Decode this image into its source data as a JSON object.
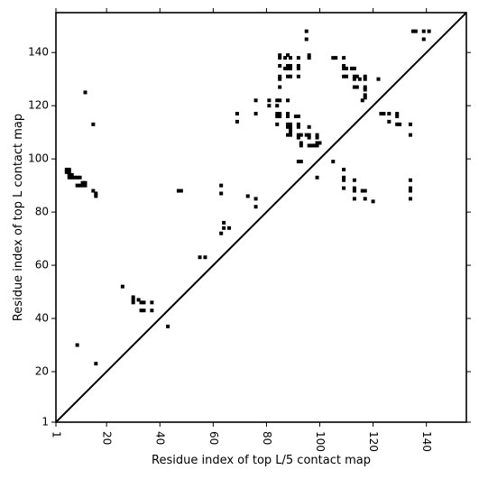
{
  "chart_data": {
    "type": "scatter",
    "xlabel": "Residue index of top L/5 contact map",
    "ylabel": "Residue index of top L contact map",
    "xlim": [
      1,
      155
    ],
    "ylim": [
      1,
      155
    ],
    "x_ticks": [
      1,
      20,
      40,
      60,
      80,
      100,
      120,
      140
    ],
    "y_ticks": [
      1,
      20,
      40,
      60,
      80,
      100,
      120,
      140
    ],
    "grid": false,
    "legend": "none",
    "marker": "square",
    "marker_color": "#000000",
    "reference_line": {
      "from": [
        1,
        1
      ],
      "to": [
        155,
        155
      ],
      "color": "#000000"
    },
    "points": [
      [
        5,
        96
      ],
      [
        5,
        95
      ],
      [
        6,
        96
      ],
      [
        6,
        95
      ],
      [
        6,
        94
      ],
      [
        6,
        93
      ],
      [
        7,
        94
      ],
      [
        7,
        93
      ],
      [
        8,
        93
      ],
      [
        9,
        93
      ],
      [
        10,
        93
      ],
      [
        9,
        90
      ],
      [
        10,
        90
      ],
      [
        11,
        90
      ],
      [
        11,
        91
      ],
      [
        12,
        91
      ],
      [
        12,
        90
      ],
      [
        12,
        125
      ],
      [
        15,
        113
      ],
      [
        15,
        88
      ],
      [
        16,
        87
      ],
      [
        16,
        86
      ],
      [
        16,
        23
      ],
      [
        9,
        30
      ],
      [
        26,
        52
      ],
      [
        30,
        48
      ],
      [
        30,
        47
      ],
      [
        30,
        46
      ],
      [
        32,
        47
      ],
      [
        33,
        46
      ],
      [
        34,
        46
      ],
      [
        33,
        43
      ],
      [
        34,
        43
      ],
      [
        37,
        46
      ],
      [
        37,
        43
      ],
      [
        43,
        37
      ],
      [
        47,
        88
      ],
      [
        48,
        88
      ],
      [
        55,
        63
      ],
      [
        57,
        63
      ],
      [
        63,
        90
      ],
      [
        63,
        87
      ],
      [
        63,
        72
      ],
      [
        64,
        76
      ],
      [
        64,
        74
      ],
      [
        66,
        74
      ],
      [
        69,
        117
      ],
      [
        69,
        114
      ],
      [
        73,
        86
      ],
      [
        76,
        85
      ],
      [
        76,
        82
      ],
      [
        76,
        122
      ],
      [
        76,
        117
      ],
      [
        81,
        122
      ],
      [
        81,
        120
      ],
      [
        84,
        122
      ],
      [
        84,
        120
      ],
      [
        84,
        117
      ],
      [
        84,
        116
      ],
      [
        84,
        113
      ],
      [
        85,
        139
      ],
      [
        85,
        138
      ],
      [
        85,
        135
      ],
      [
        85,
        131
      ],
      [
        85,
        130
      ],
      [
        85,
        127
      ],
      [
        85,
        122
      ],
      [
        85,
        117
      ],
      [
        85,
        116
      ],
      [
        87,
        138
      ],
      [
        87,
        134
      ],
      [
        88,
        139
      ],
      [
        88,
        135
      ],
      [
        88,
        134
      ],
      [
        88,
        131
      ],
      [
        88,
        122
      ],
      [
        88,
        117
      ],
      [
        88,
        116
      ],
      [
        88,
        113
      ],
      [
        88,
        112
      ],
      [
        88,
        109
      ],
      [
        89,
        138
      ],
      [
        89,
        135
      ],
      [
        89,
        134
      ],
      [
        89,
        131
      ],
      [
        89,
        113
      ],
      [
        89,
        112
      ],
      [
        89,
        111
      ],
      [
        89,
        110
      ],
      [
        89,
        109
      ],
      [
        91,
        116
      ],
      [
        92,
        138
      ],
      [
        92,
        135
      ],
      [
        92,
        134
      ],
      [
        92,
        131
      ],
      [
        92,
        116
      ],
      [
        92,
        113
      ],
      [
        92,
        112
      ],
      [
        92,
        109
      ],
      [
        92,
        108
      ],
      [
        92,
        99
      ],
      [
        93,
        109
      ],
      [
        93,
        106
      ],
      [
        93,
        105
      ],
      [
        93,
        99
      ],
      [
        95,
        148
      ],
      [
        95,
        145
      ],
      [
        95,
        109
      ],
      [
        96,
        139
      ],
      [
        96,
        138
      ],
      [
        96,
        112
      ],
      [
        96,
        109
      ],
      [
        96,
        108
      ],
      [
        96,
        105
      ],
      [
        97,
        105
      ],
      [
        98,
        105
      ],
      [
        99,
        109
      ],
      [
        99,
        108
      ],
      [
        99,
        106
      ],
      [
        99,
        105
      ],
      [
        99,
        93
      ],
      [
        100,
        106
      ],
      [
        105,
        138
      ],
      [
        106,
        138
      ],
      [
        105,
        99
      ],
      [
        109,
        138
      ],
      [
        109,
        135
      ],
      [
        109,
        134
      ],
      [
        109,
        131
      ],
      [
        109,
        96
      ],
      [
        109,
        93
      ],
      [
        109,
        92
      ],
      [
        109,
        89
      ],
      [
        110,
        134
      ],
      [
        110,
        131
      ],
      [
        112,
        134
      ],
      [
        113,
        134
      ],
      [
        113,
        131
      ],
      [
        113,
        130
      ],
      [
        113,
        127
      ],
      [
        113,
        92
      ],
      [
        113,
        89
      ],
      [
        113,
        88
      ],
      [
        113,
        85
      ],
      [
        114,
        131
      ],
      [
        114,
        127
      ],
      [
        115,
        130
      ],
      [
        116,
        122
      ],
      [
        116,
        88
      ],
      [
        117,
        131
      ],
      [
        117,
        130
      ],
      [
        117,
        127
      ],
      [
        117,
        126
      ],
      [
        117,
        124
      ],
      [
        117,
        123
      ],
      [
        117,
        88
      ],
      [
        117,
        85
      ],
      [
        120,
        84
      ],
      [
        122,
        130
      ],
      [
        123,
        117
      ],
      [
        124,
        117
      ],
      [
        126,
        117
      ],
      [
        126,
        114
      ],
      [
        129,
        117
      ],
      [
        129,
        116
      ],
      [
        129,
        113
      ],
      [
        130,
        113
      ],
      [
        134,
        113
      ],
      [
        134,
        109
      ],
      [
        134,
        92
      ],
      [
        134,
        89
      ],
      [
        134,
        88
      ],
      [
        134,
        85
      ],
      [
        135,
        148
      ],
      [
        136,
        148
      ],
      [
        139,
        148
      ],
      [
        139,
        145
      ],
      [
        141,
        148
      ]
    ]
  }
}
